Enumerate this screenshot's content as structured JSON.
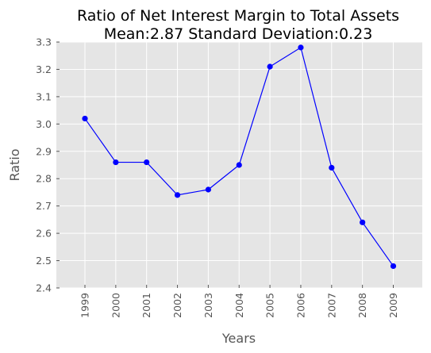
{
  "chart_data": {
    "type": "line",
    "title": "Ratio of Net Interest Margin to Total Assets",
    "subtitle": "Mean:2.87 Standard Deviation:0.23",
    "xlabel": "Years",
    "ylabel": "Ratio",
    "categories": [
      "1999",
      "2000",
      "2001",
      "2002",
      "2003",
      "2004",
      "2005",
      "2006",
      "2007",
      "2008",
      "2009"
    ],
    "values": [
      3.02,
      2.86,
      2.86,
      2.74,
      2.76,
      2.85,
      3.21,
      3.28,
      2.84,
      2.64,
      2.48
    ],
    "ylim": [
      2.4,
      3.3
    ],
    "yticks": [
      "2.4",
      "2.5",
      "2.6",
      "2.7",
      "2.8",
      "2.9",
      "3.0",
      "3.1",
      "3.2",
      "3.3"
    ],
    "grid": true,
    "line_color": "#0000ff",
    "marker_color": "#0000ff",
    "plot_background": "#e5e5e5",
    "grid_color": "#ffffff"
  }
}
